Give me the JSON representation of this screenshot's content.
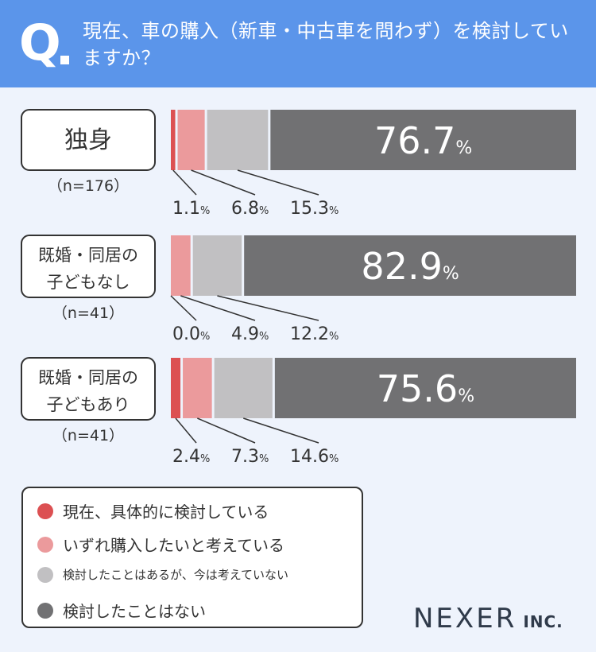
{
  "question": {
    "letter": "Q",
    "text": "現在、車の購入（新車・中古車を問わず）を検討していますか？"
  },
  "chart_data": {
    "type": "bar",
    "orientation": "horizontal",
    "stacked": true,
    "percent_sign": "%",
    "categories": [
      {
        "label_lines": [
          "独身"
        ],
        "n": "（n=176）"
      },
      {
        "label_lines": [
          "既婚・同居の",
          "子どもなし"
        ],
        "n": "（n=41）"
      },
      {
        "label_lines": [
          "既婚・同居の",
          "子どもあり"
        ],
        "n": "（n=41）"
      }
    ],
    "series": [
      {
        "name": "現在、具体的に検討している",
        "color": "#dc5052",
        "values": [
          1.1,
          0.0,
          2.4
        ]
      },
      {
        "name": "いずれ購入したいと考えている",
        "color": "#eb9a9c",
        "values": [
          6.8,
          4.9,
          7.3
        ]
      },
      {
        "name": "検討したことはあるが、今は考えていない",
        "color": "#c1c0c2",
        "values": [
          15.3,
          12.2,
          14.6
        ]
      },
      {
        "name": "検討したことはない",
        "color": "#717173",
        "values": [
          76.7,
          82.9,
          75.6
        ]
      }
    ],
    "value_labels": [
      [
        "1.1",
        "6.8",
        "15.3",
        "76.7"
      ],
      [
        "0.0",
        "4.9",
        "12.2",
        "82.9"
      ],
      [
        "2.4",
        "7.3",
        "14.6",
        "75.6"
      ]
    ],
    "xlim": [
      0,
      100
    ],
    "legend_position": "bottom-left"
  },
  "brand": {
    "name": "NEXER",
    "suffix": "INC."
  }
}
